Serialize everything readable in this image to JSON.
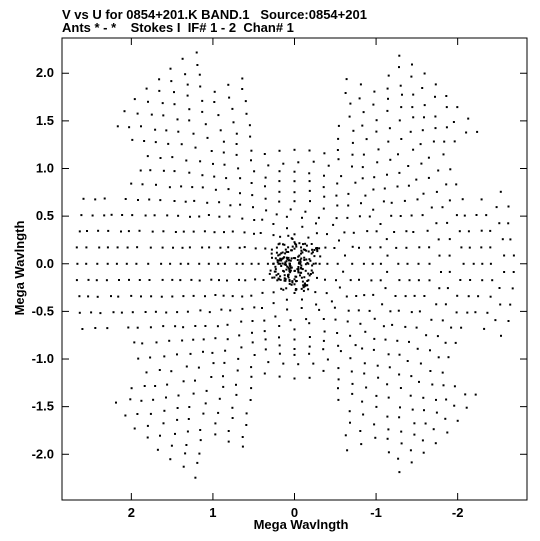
{
  "chart_data": {
    "type": "scatter",
    "title": "V vs U for 0854+201.K BAND.1   Source:0854+201",
    "subtitle": "Ants * - *    Stokes I  IF# 1 - 2  Chan# 1",
    "xlabel": "Mega Wavlngth",
    "ylabel": "Mega Wavlngth",
    "xlim": [
      2.85,
      -2.85
    ],
    "ylim": [
      -2.48,
      2.37
    ],
    "x_ticks": [
      2,
      1,
      0,
      -1,
      -2
    ],
    "x_tick_labels": [
      "2",
      "1",
      "0",
      "-1",
      "-2"
    ],
    "y_ticks": [
      2.0,
      1.5,
      1.0,
      0.5,
      0.0,
      -0.5,
      -1.0,
      -1.5,
      -2.0
    ],
    "y_tick_labels": [
      "2.0",
      "1.5",
      "1.0",
      "0.5",
      "0.0",
      "-0.5",
      "-1.0",
      "-1.5",
      "-2.0"
    ],
    "grid": false,
    "marker_color": "#000000",
    "uv_tracks": {
      "description_values": "Symmetric uv-coverage: elliptical tracks at these baseline radii (Mλ), sampled in angle, plus mirrored points",
      "radii": [
        0.08,
        0.16,
        0.24,
        0.33,
        0.42,
        0.52,
        0.62,
        0.72,
        0.83,
        0.94,
        1.05,
        1.16,
        1.28,
        1.4,
        1.52,
        1.65,
        1.78,
        1.92,
        2.05,
        2.18,
        2.3,
        2.42,
        2.55,
        2.68
      ],
      "axial_ratio": 0.93,
      "lobe_angles_deg": [
        45,
        135,
        225,
        315,
        0,
        180
      ]
    }
  }
}
